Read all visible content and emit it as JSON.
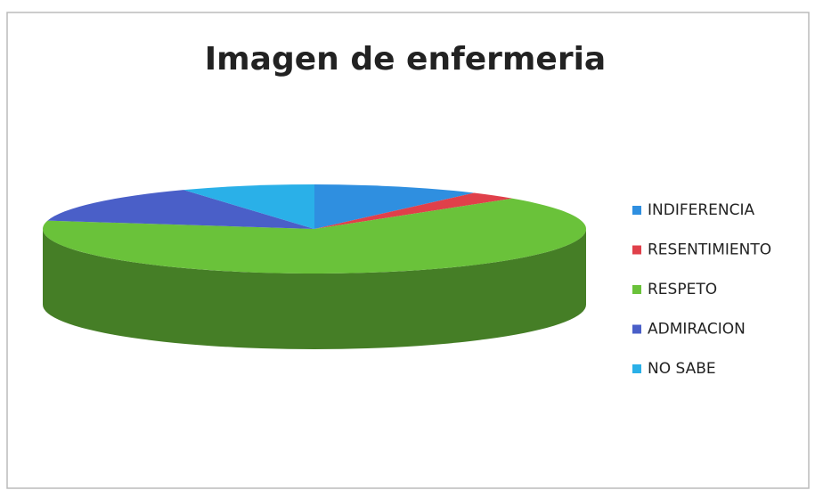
{
  "chart_data": {
    "type": "pie",
    "title": "Imagen de enfermeria",
    "categories": [
      "INDIFERENCIA",
      "RESENTIMIENTO",
      "RESPETO",
      "ADMIRACION",
      "NO SABE"
    ],
    "values": [
      10,
      3,
      65,
      14,
      8
    ],
    "colors": [
      "#2f8fe0",
      "#e0404a",
      "#6ac23a",
      "#4a5fc8",
      "#2ab0e8"
    ],
    "legend": "right"
  }
}
